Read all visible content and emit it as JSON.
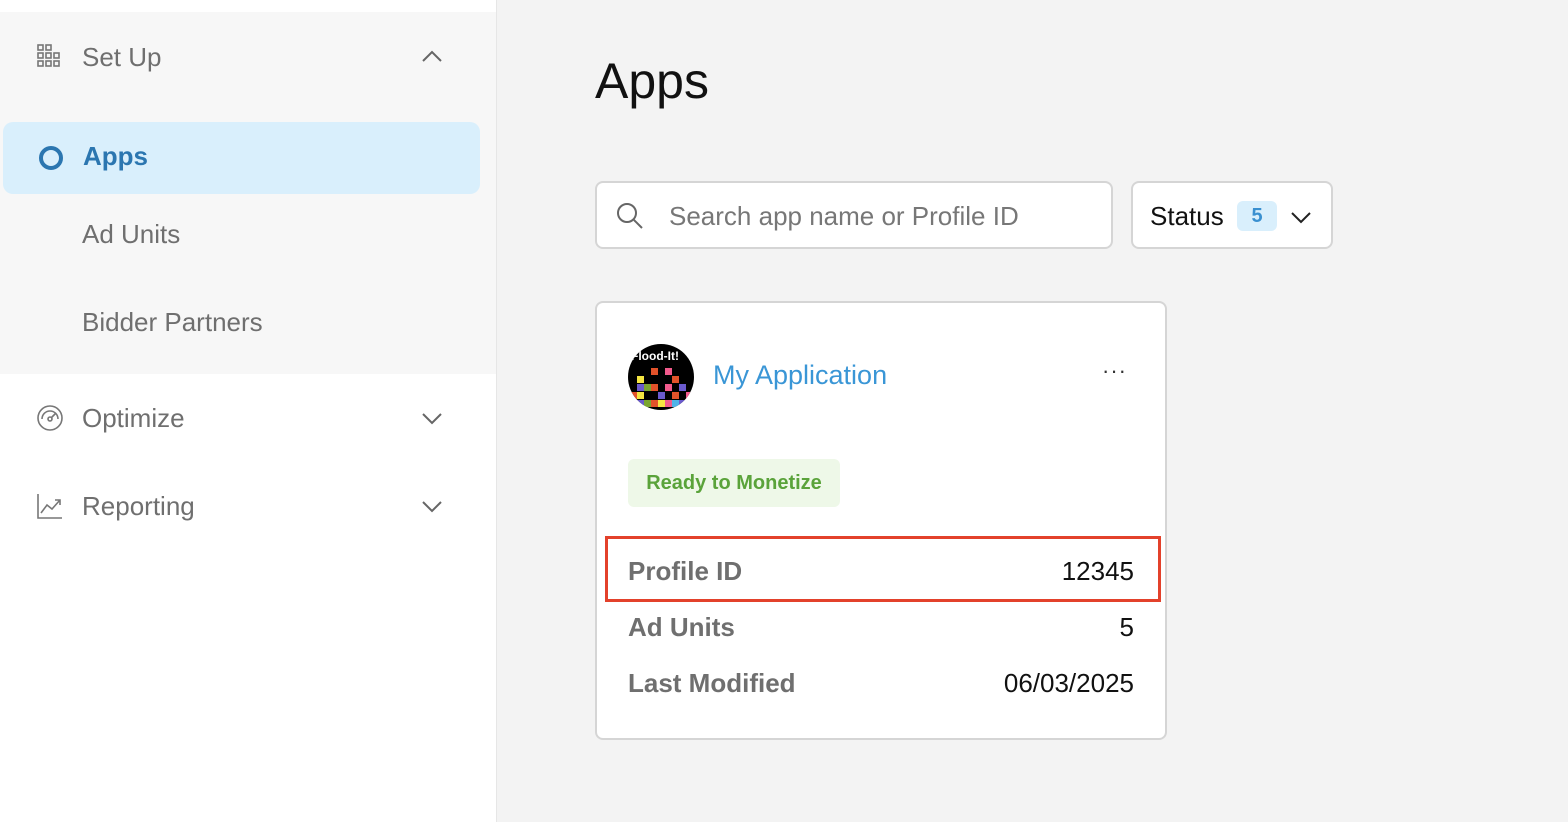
{
  "sidebar": {
    "setup": {
      "label": "Set Up",
      "icon": "grid-icon",
      "expanded": true
    },
    "items": [
      {
        "label": "Apps",
        "active": true
      },
      {
        "label": "Ad Units"
      },
      {
        "label": "Bidder Partners"
      }
    ],
    "optimize": {
      "label": "Optimize",
      "icon": "gauge-icon"
    },
    "reporting": {
      "label": "Reporting",
      "icon": "chart-line-icon"
    }
  },
  "main": {
    "title": "Apps",
    "search": {
      "placeholder": "Search app name or Profile ID",
      "value": ""
    },
    "status_filter": {
      "label": "Status",
      "count": "5"
    },
    "card": {
      "logo_text": "Flood-It!",
      "name": "My Application",
      "more": "···",
      "status": "Ready to Monetize",
      "fields": [
        {
          "label": "Profile ID",
          "value": "12345"
        },
        {
          "label": "Ad Units",
          "value": "5"
        },
        {
          "label": "Last Modified",
          "value": "06/03/2025"
        }
      ]
    }
  },
  "colors": {
    "accent": "#2b76b0",
    "active_bg": "#d9effc",
    "ready": "#5aa33a",
    "highlight": "#e3412b"
  }
}
